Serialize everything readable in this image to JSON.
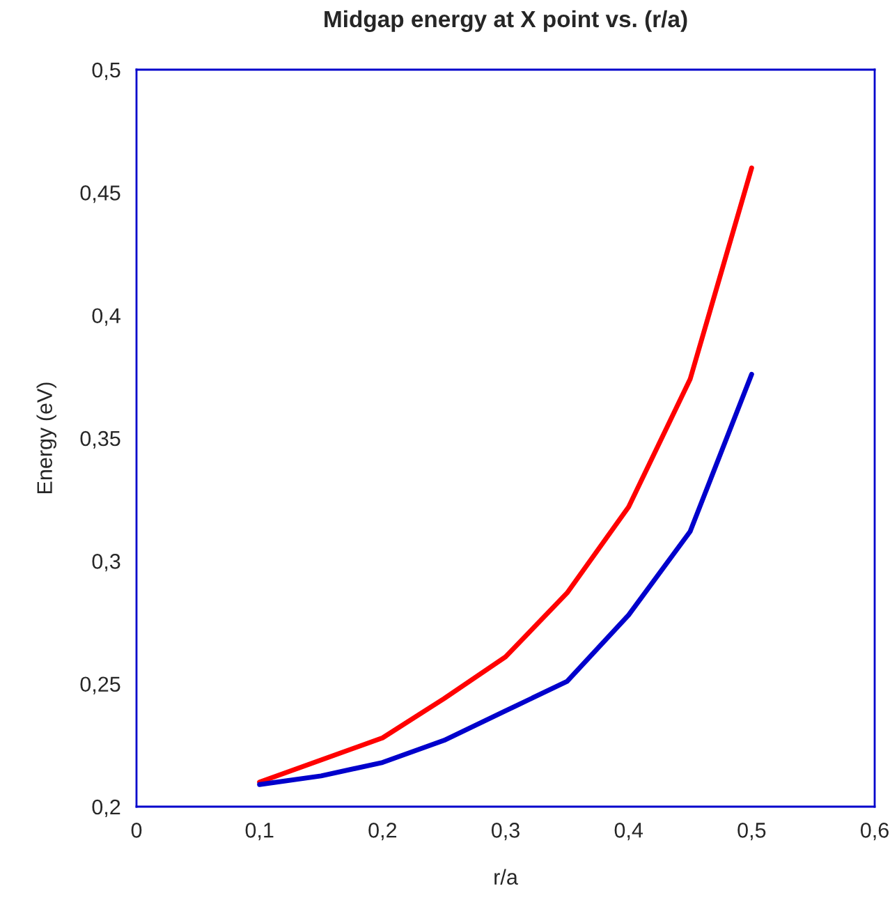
{
  "chart_data": {
    "type": "line",
    "title": "Midgap energy at X point vs. (r/a)",
    "xlabel": "r/a",
    "ylabel": "Energy (eV)",
    "x": [
      0.1,
      0.15,
      0.2,
      0.25,
      0.3,
      0.35,
      0.4,
      0.45,
      0.5
    ],
    "series": [
      {
        "color": "#ff0000",
        "values": [
          0.21,
          0.219,
          0.228,
          0.244,
          0.261,
          0.287,
          0.322,
          0.374,
          0.46
        ]
      },
      {
        "color": "#0000cc",
        "values": [
          0.209,
          0.2125,
          0.218,
          0.227,
          0.239,
          0.251,
          0.278,
          0.312,
          0.376
        ]
      }
    ],
    "xlim": [
      0,
      0.6
    ],
    "ylim": [
      0.2,
      0.5
    ],
    "xticks": [
      0,
      {
        "value": 0.1,
        "label": "0,1"
      },
      {
        "value": 0.2,
        "label": "0,2"
      },
      {
        "value": 0.3,
        "label": "0,3"
      },
      {
        "value": 0.4,
        "label": "0,4"
      },
      {
        "value": 0.5,
        "label": "0,5"
      },
      {
        "value": 0.6,
        "label": "0,6"
      }
    ],
    "yticks": [
      {
        "value": 0.2,
        "label": "0,2"
      },
      {
        "value": 0.25,
        "label": "0,25"
      },
      {
        "value": 0.3,
        "label": "0,3"
      },
      {
        "value": 0.35,
        "label": "0,35"
      },
      {
        "value": 0.4,
        "label": "0,4"
      },
      {
        "value": 0.45,
        "label": "0,45"
      },
      {
        "value": 0.5,
        "label": "0,5"
      }
    ],
    "grid": false,
    "marker": "none",
    "line_style": "solid"
  }
}
